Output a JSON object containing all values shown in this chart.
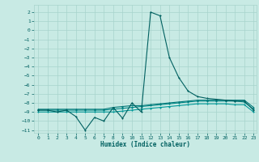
{
  "xlabel": "Humidex (Indice chaleur)",
  "xlim": [
    -0.5,
    23.3
  ],
  "ylim": [
    -11.3,
    2.8
  ],
  "xticks": [
    0,
    1,
    2,
    3,
    4,
    5,
    6,
    7,
    8,
    9,
    10,
    11,
    12,
    13,
    14,
    15,
    16,
    17,
    18,
    19,
    20,
    21,
    22,
    23
  ],
  "yticks": [
    2,
    1,
    0,
    -1,
    -2,
    -3,
    -4,
    -5,
    -6,
    -7,
    -8,
    -9,
    -10,
    -11
  ],
  "bg_color": "#c8eae4",
  "grid_color": "#a8d4cc",
  "line_color1": "#006060",
  "line_color2": "#007878",
  "line_color3": "#008888",
  "line_color4": "#009898",
  "main_x": [
    0,
    1,
    2,
    3,
    4,
    5,
    6,
    7,
    8,
    9,
    10,
    11,
    12,
    13,
    14,
    15,
    16,
    17,
    18,
    19,
    20,
    21,
    22,
    23
  ],
  "main_y": [
    -8.8,
    -8.8,
    -9.0,
    -8.8,
    -9.5,
    -11.0,
    -9.6,
    -10.0,
    -8.5,
    -9.7,
    -8.0,
    -9.0,
    2.0,
    1.6,
    -3.0,
    -5.2,
    -6.7,
    -7.3,
    -7.5,
    -7.6,
    -7.7,
    -7.8,
    -7.8,
    -8.8
  ],
  "line2_x": [
    0,
    1,
    2,
    3,
    4,
    5,
    6,
    7,
    8,
    9,
    10,
    11,
    12,
    13,
    14,
    15,
    16,
    17,
    18,
    19,
    20,
    21,
    22,
    23
  ],
  "line2_y": [
    -8.7,
    -8.7,
    -8.7,
    -8.7,
    -8.7,
    -8.7,
    -8.7,
    -8.7,
    -8.5,
    -8.4,
    -8.3,
    -8.3,
    -8.2,
    -8.1,
    -8.0,
    -7.9,
    -7.8,
    -7.7,
    -7.7,
    -7.7,
    -7.7,
    -7.7,
    -7.7,
    -8.5
  ],
  "line3_x": [
    0,
    1,
    2,
    3,
    4,
    5,
    6,
    7,
    8,
    9,
    10,
    11,
    12,
    13,
    14,
    15,
    16,
    17,
    18,
    19,
    20,
    21,
    22,
    23
  ],
  "line3_y": [
    -8.8,
    -8.8,
    -8.8,
    -8.8,
    -8.8,
    -8.8,
    -8.8,
    -8.8,
    -8.7,
    -8.6,
    -8.5,
    -8.4,
    -8.3,
    -8.2,
    -8.1,
    -8.0,
    -7.9,
    -7.8,
    -7.8,
    -7.8,
    -7.8,
    -7.8,
    -7.9,
    -8.7
  ],
  "line4_x": [
    0,
    1,
    2,
    3,
    4,
    5,
    6,
    7,
    8,
    9,
    10,
    11,
    12,
    13,
    14,
    15,
    16,
    17,
    18,
    19,
    20,
    21,
    22,
    23
  ],
  "line4_y": [
    -9.0,
    -9.0,
    -9.0,
    -9.0,
    -9.0,
    -9.0,
    -9.0,
    -9.0,
    -9.0,
    -8.9,
    -8.8,
    -8.7,
    -8.6,
    -8.5,
    -8.4,
    -8.3,
    -8.2,
    -8.1,
    -8.1,
    -8.1,
    -8.1,
    -8.2,
    -8.2,
    -9.0
  ]
}
